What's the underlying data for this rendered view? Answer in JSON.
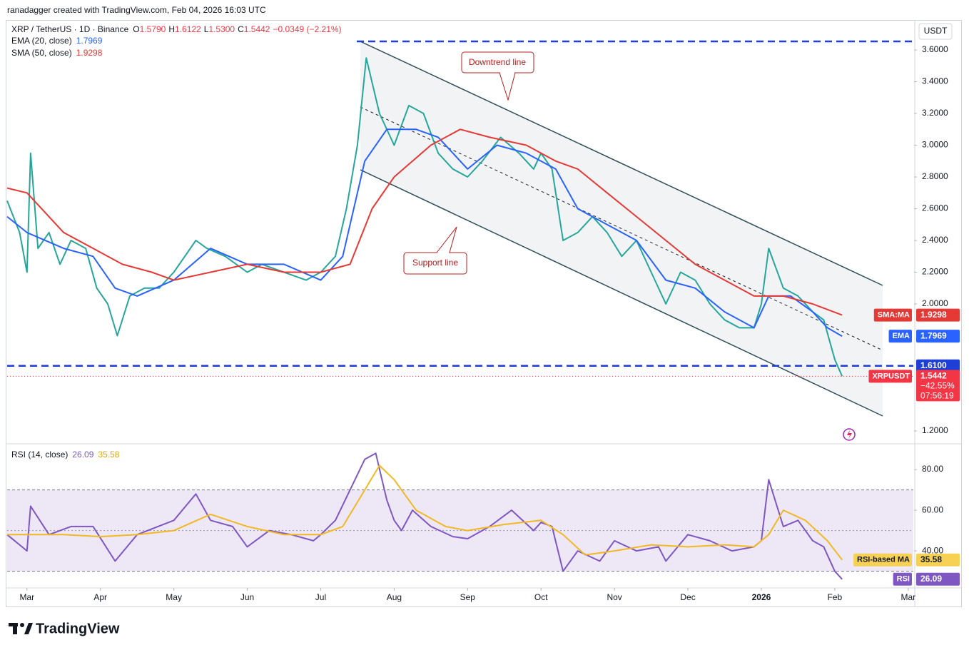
{
  "header": {
    "credit": "ranadagger created with TradingView.com, Feb 04, 2026 16:03 UTC",
    "brand": "TradingView"
  },
  "annotations": {
    "downtrend": "Downtrend line",
    "support": "Support line"
  },
  "chart_data": [
    {
      "type": "line",
      "title": "XRP / TetherUS · 1D · Binance",
      "ohlc": [
        {
          "label": "O",
          "value": "1.5790"
        },
        {
          "label": "H",
          "value": "1.6122"
        },
        {
          "label": "L",
          "value": "1.5300"
        },
        {
          "label": "C",
          "value": "1.5442"
        }
      ],
      "change": "−0.0349 (−2.21%)",
      "unit": "USDT",
      "xlim": [
        -0.27,
        12.07
      ],
      "xticks": [
        {
          "value": 0,
          "label": "Mar"
        },
        {
          "value": 1,
          "label": "Apr"
        },
        {
          "value": 2,
          "label": "May"
        },
        {
          "value": 3,
          "label": "Jun"
        },
        {
          "value": 4,
          "label": "Jul"
        },
        {
          "value": 5,
          "label": "Aug"
        },
        {
          "value": 6,
          "label": "Sep"
        },
        {
          "value": 7,
          "label": "Oct"
        },
        {
          "value": 8,
          "label": "Nov"
        },
        {
          "value": 9,
          "label": "Dec"
        },
        {
          "value": 10,
          "label": "2026"
        },
        {
          "value": 11,
          "label": "Feb"
        },
        {
          "value": 12,
          "label": "Mar"
        }
      ],
      "ylim": [
        1.128,
        3.78
      ],
      "yticks": [
        {
          "value": 1.2,
          "label": "1.2000"
        },
        {
          "value": 2.0,
          "label": "2.0000"
        },
        {
          "value": 2.2,
          "label": "2.2000"
        },
        {
          "value": 2.4,
          "label": "2.4000"
        },
        {
          "value": 2.6,
          "label": "2.6000"
        },
        {
          "value": 2.8,
          "label": "2.8000"
        },
        {
          "value": 3.0,
          "label": "3.0000"
        },
        {
          "value": 3.2,
          "label": "3.2000"
        },
        {
          "value": 3.4,
          "label": "3.4000"
        },
        {
          "value": 3.6,
          "label": "3.6000"
        }
      ],
      "levels": [
        {
          "value": 1.61,
          "label": "1.6100",
          "color": "#1e3ed8"
        }
      ],
      "series": [
        {
          "name": "XRPUSDT",
          "color": "#26a69a",
          "badge_color": "#f23645",
          "change": "−42.55%",
          "countdown": "07:56:19",
          "x": [
            -0.27,
            -0.1,
            0,
            0.05,
            0.15,
            0.3,
            0.45,
            0.6,
            0.8,
            0.95,
            1.1,
            1.23,
            1.4,
            1.6,
            1.8,
            2.0,
            2.3,
            2.45,
            2.7,
            3.0,
            3.2,
            3.5,
            3.8,
            4.0,
            4.2,
            4.35,
            4.5,
            4.62,
            4.8,
            5.0,
            5.2,
            5.4,
            5.6,
            5.8,
            6.0,
            6.2,
            6.45,
            6.7,
            6.9,
            7.0,
            7.15,
            7.3,
            7.5,
            7.7,
            7.9,
            8.1,
            8.3,
            8.5,
            8.7,
            8.9,
            9.1,
            9.3,
            9.5,
            9.7,
            9.9,
            10.0,
            10.1,
            10.3,
            10.5,
            10.7,
            10.85,
            11.0,
            11.1
          ],
          "values": [
            2.65,
            2.45,
            2.2,
            2.95,
            2.35,
            2.45,
            2.25,
            2.4,
            2.35,
            2.1,
            2.0,
            1.8,
            2.05,
            2.1,
            2.1,
            2.2,
            2.4,
            2.35,
            2.3,
            2.2,
            2.25,
            2.2,
            2.15,
            2.2,
            2.3,
            2.6,
            3.0,
            3.55,
            3.2,
            3.0,
            3.25,
            3.2,
            2.95,
            2.85,
            2.8,
            2.9,
            3.05,
            2.95,
            2.85,
            2.95,
            2.85,
            2.4,
            2.45,
            2.55,
            2.45,
            2.3,
            2.4,
            2.2,
            2.0,
            2.2,
            2.15,
            2.0,
            1.9,
            1.85,
            1.85,
            2.0,
            2.35,
            2.1,
            2.05,
            1.95,
            1.9,
            1.65,
            1.5442
          ]
        },
        {
          "name": "EMA",
          "label": "EMA (20, close)",
          "color": "#2962ff",
          "badge_color": "#2962ff",
          "x": [
            -0.27,
            0,
            0.5,
            0.9,
            1.2,
            1.5,
            2.0,
            2.5,
            3.0,
            3.5,
            4.0,
            4.3,
            4.6,
            4.9,
            5.3,
            5.6,
            6.0,
            6.4,
            6.8,
            7.2,
            7.5,
            7.9,
            8.3,
            8.7,
            9.1,
            9.5,
            9.9,
            10.1,
            10.4,
            10.7,
            10.9,
            11.1
          ],
          "values": [
            2.55,
            2.45,
            2.35,
            2.3,
            2.1,
            2.05,
            2.15,
            2.35,
            2.25,
            2.25,
            2.15,
            2.3,
            2.9,
            3.1,
            3.1,
            3.05,
            2.85,
            3.0,
            2.95,
            2.85,
            2.6,
            2.5,
            2.4,
            2.15,
            2.1,
            1.95,
            1.85,
            2.05,
            2.05,
            1.95,
            1.85,
            1.7969
          ]
        },
        {
          "name": "SMA:MA",
          "label": "SMA (50, close)",
          "color": "#e53935",
          "badge_color": "#e53935",
          "x": [
            -0.27,
            0,
            0.5,
            0.9,
            1.3,
            1.7,
            2.0,
            2.5,
            3.0,
            3.5,
            4.0,
            4.4,
            4.7,
            5.0,
            5.5,
            5.9,
            6.3,
            6.8,
            7.2,
            7.5,
            7.9,
            8.3,
            8.7,
            9.1,
            9.5,
            9.9,
            10.3,
            10.7,
            11.1
          ],
          "values": [
            2.73,
            2.7,
            2.45,
            2.35,
            2.25,
            2.2,
            2.15,
            2.2,
            2.25,
            2.2,
            2.2,
            2.25,
            2.6,
            2.8,
            3.0,
            3.1,
            3.05,
            3.0,
            2.9,
            2.85,
            2.7,
            2.55,
            2.4,
            2.25,
            2.15,
            2.05,
            2.05,
            2.0,
            1.9298
          ]
        }
      ]
    },
    {
      "type": "line",
      "title": "RSI (14, close)",
      "xlim": [
        -0.27,
        12.07
      ],
      "ylim": [
        23.2,
        91.6
      ],
      "yticks": [
        {
          "value": 40,
          "label": "40.00"
        },
        {
          "value": 60,
          "label": "60.00"
        },
        {
          "value": 80,
          "label": "80.00"
        }
      ],
      "bands": [
        30,
        70
      ],
      "midline": 50,
      "band_fill": "#ede7f6",
      "series": [
        {
          "name": "RSI",
          "color": "#7e57c2",
          "badge_color": "#7e57c2",
          "x": [
            -0.27,
            0,
            0.05,
            0.3,
            0.6,
            0.9,
            1.2,
            1.5,
            2.0,
            2.3,
            2.5,
            2.8,
            3.0,
            3.3,
            3.6,
            3.9,
            4.0,
            4.2,
            4.4,
            4.6,
            4.75,
            4.9,
            5.0,
            5.1,
            5.25,
            5.5,
            5.8,
            6.0,
            6.3,
            6.6,
            6.9,
            7.0,
            7.15,
            7.3,
            7.5,
            7.8,
            8.0,
            8.3,
            8.6,
            8.7,
            9.0,
            9.3,
            9.6,
            9.9,
            10.0,
            10.1,
            10.3,
            10.5,
            10.7,
            10.85,
            11.0,
            11.1
          ],
          "values": [
            48,
            40,
            62,
            48,
            52,
            52,
            35,
            48,
            55,
            68,
            55,
            52,
            42,
            50,
            48,
            45,
            48,
            55,
            70,
            85,
            88,
            65,
            55,
            50,
            60,
            52,
            47,
            46,
            52,
            60,
            50,
            54,
            52,
            30,
            40,
            35,
            45,
            40,
            42,
            35,
            48,
            45,
            40,
            42,
            45,
            75,
            52,
            55,
            45,
            42,
            30,
            26.09
          ]
        },
        {
          "name": "RSI-based MA",
          "color": "#f2b824",
          "badge_color": "#f7d154",
          "x": [
            -0.27,
            0.5,
            1.0,
            1.5,
            2.0,
            2.5,
            3.0,
            3.5,
            4.0,
            4.3,
            4.6,
            4.8,
            5.0,
            5.3,
            5.7,
            6.0,
            6.5,
            7.0,
            7.3,
            7.6,
            8.0,
            8.5,
            9.0,
            9.5,
            9.9,
            10.1,
            10.3,
            10.6,
            10.9,
            11.1
          ],
          "values": [
            48,
            48,
            47,
            48,
            50,
            58,
            52,
            48,
            48,
            52,
            70,
            82,
            75,
            60,
            52,
            50,
            53,
            55,
            48,
            38,
            40,
            43,
            42,
            43,
            42,
            48,
            60,
            55,
            45,
            35.58
          ]
        }
      ]
    }
  ]
}
